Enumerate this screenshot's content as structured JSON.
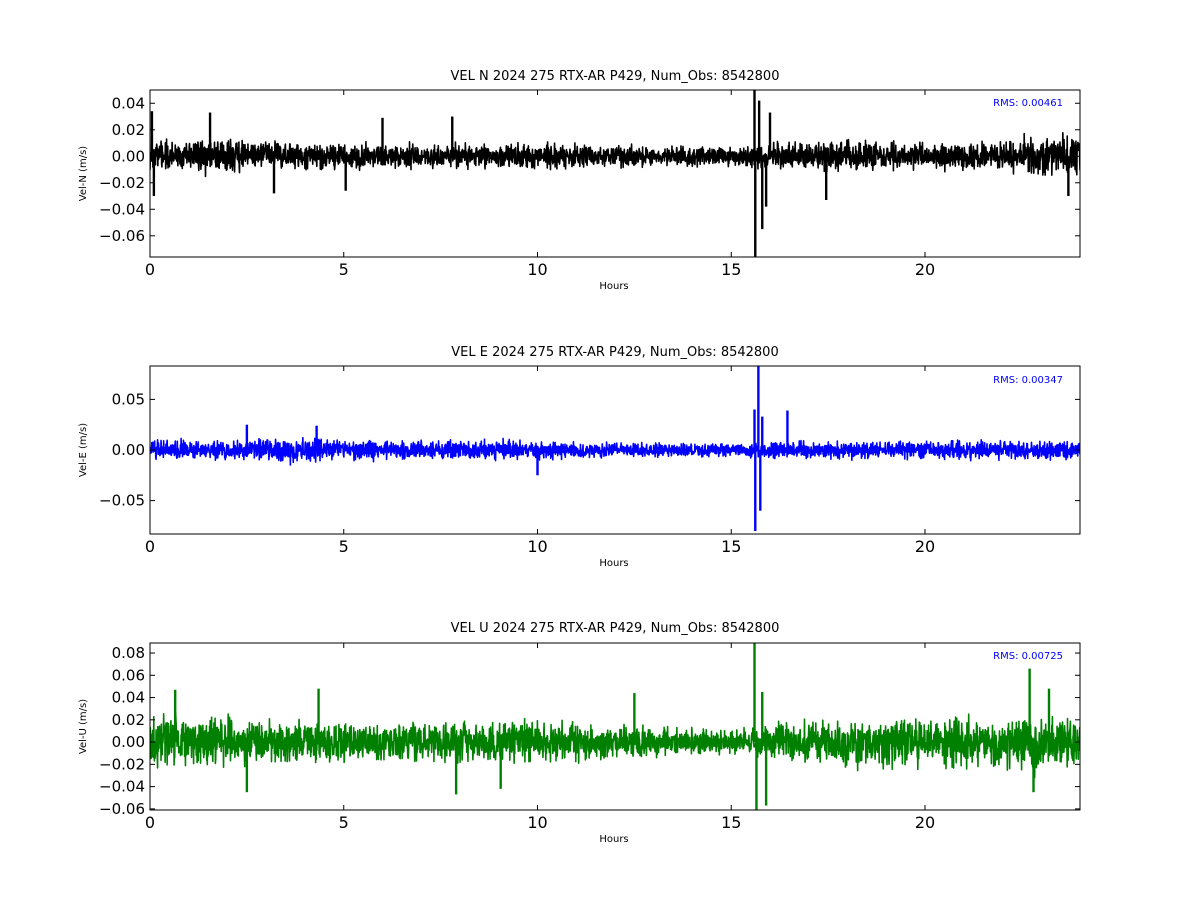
{
  "chart_data": [
    {
      "type": "line",
      "title": "VEL N 2024 275 RTX-AR  P429, Num_Obs: 8542800",
      "xlabel": "Hours",
      "ylabel": "Vel-N (m/s)",
      "xlim": [
        0,
        24
      ],
      "ylim": [
        -0.076,
        0.05
      ],
      "xticks": [
        0,
        5,
        10,
        15,
        20
      ],
      "xtick_labels": [
        "0",
        "5",
        "10",
        "15",
        "20"
      ],
      "yticks": [
        -0.06,
        -0.04,
        -0.02,
        0.0,
        0.02,
        0.04
      ],
      "ytick_labels": [
        "−0.06",
        "−0.04",
        "−0.02",
        "0.00",
        "0.02",
        "0.04"
      ],
      "color": "#000000",
      "annotation": "RMS:  0.00461",
      "grid": false,
      "series": [
        {
          "noise_envelope": {
            "x": [
              0,
              2,
              4,
              6,
              8,
              10,
              12,
              14,
              15,
              16,
              18,
              20,
              22,
              24
            ],
            "amp": [
              0.017,
              0.018,
              0.013,
              0.013,
              0.012,
              0.013,
              0.011,
              0.01,
              0.01,
              0.013,
              0.016,
              0.013,
              0.016,
              0.022
            ]
          },
          "spikes": [
            {
              "x": 0.05,
              "y": 0.034
            },
            {
              "x": 0.1,
              "y": -0.03
            },
            {
              "x": 1.55,
              "y": 0.033
            },
            {
              "x": 3.2,
              "y": -0.028
            },
            {
              "x": 5.05,
              "y": -0.026
            },
            {
              "x": 6.0,
              "y": 0.029
            },
            {
              "x": 7.8,
              "y": 0.03
            },
            {
              "x": 15.6,
              "y": 0.05
            },
            {
              "x": 15.62,
              "y": -0.076
            },
            {
              "x": 15.72,
              "y": 0.042
            },
            {
              "x": 15.8,
              "y": -0.055
            },
            {
              "x": 15.9,
              "y": -0.038
            },
            {
              "x": 16.0,
              "y": 0.033
            },
            {
              "x": 17.45,
              "y": -0.033
            },
            {
              "x": 23.7,
              "y": -0.03
            }
          ]
        }
      ]
    },
    {
      "type": "line",
      "title": "VEL E 2024 275 RTX-AR  P429, Num_Obs: 8542800",
      "xlabel": "Hours",
      "ylabel": "Vel-E (m/s)",
      "xlim": [
        0,
        24
      ],
      "ylim": [
        -0.083,
        0.083
      ],
      "xticks": [
        0,
        5,
        10,
        15,
        20
      ],
      "xtick_labels": [
        "0",
        "5",
        "10",
        "15",
        "20"
      ],
      "yticks": [
        -0.05,
        0.0,
        0.05
      ],
      "ytick_labels": [
        "−0.05",
        "0.00",
        "0.05"
      ],
      "color": "#0000ff",
      "annotation": "RMS:  0.00347",
      "grid": false,
      "series": [
        {
          "noise_envelope": {
            "x": [
              0,
              2,
              4,
              6,
              8,
              10,
              12,
              14,
              15,
              16,
              18,
              20,
              22,
              24
            ],
            "amp": [
              0.013,
              0.013,
              0.017,
              0.012,
              0.012,
              0.013,
              0.011,
              0.009,
              0.009,
              0.011,
              0.011,
              0.012,
              0.012,
              0.013
            ]
          },
          "spikes": [
            {
              "x": 2.5,
              "y": 0.025
            },
            {
              "x": 4.3,
              "y": 0.024
            },
            {
              "x": 10.0,
              "y": -0.025
            },
            {
              "x": 15.6,
              "y": 0.04
            },
            {
              "x": 15.62,
              "y": -0.08
            },
            {
              "x": 15.7,
              "y": 0.083
            },
            {
              "x": 15.75,
              "y": -0.06
            },
            {
              "x": 15.8,
              "y": 0.033
            },
            {
              "x": 16.45,
              "y": 0.039
            }
          ]
        }
      ]
    },
    {
      "type": "line",
      "title": "VEL U 2024 275 RTX-AR  P429, Num_Obs: 8542800",
      "xlabel": "Hours",
      "ylabel": "Vel-U (m/s)",
      "xlim": [
        0,
        24
      ],
      "ylim": [
        -0.061,
        0.089
      ],
      "xticks": [
        0,
        5,
        10,
        15,
        20
      ],
      "xtick_labels": [
        "0",
        "5",
        "10",
        "15",
        "20"
      ],
      "yticks": [
        -0.06,
        -0.04,
        -0.02,
        0.0,
        0.02,
        0.04,
        0.06,
        0.08
      ],
      "ytick_labels": [
        "−0.06",
        "−0.04",
        "−0.02",
        "0.00",
        "0.02",
        "0.04",
        "0.06",
        "0.08"
      ],
      "color": "#008000",
      "annotation": "RMS:  0.00725",
      "grid": false,
      "series": [
        {
          "noise_envelope": {
            "x": [
              0,
              1,
              2,
              4,
              6,
              8,
              10,
              12,
              14,
              15,
              16,
              18,
              19,
              20,
              22,
              23,
              24
            ],
            "amp": [
              0.028,
              0.034,
              0.028,
              0.022,
              0.022,
              0.023,
              0.025,
              0.02,
              0.015,
              0.015,
              0.022,
              0.026,
              0.036,
              0.03,
              0.03,
              0.036,
              0.025
            ]
          },
          "spikes": [
            {
              "x": 0.65,
              "y": 0.047
            },
            {
              "x": 2.5,
              "y": -0.045
            },
            {
              "x": 4.35,
              "y": 0.048
            },
            {
              "x": 7.9,
              "y": -0.047
            },
            {
              "x": 9.05,
              "y": -0.042
            },
            {
              "x": 12.5,
              "y": 0.044
            },
            {
              "x": 15.6,
              "y": 0.089
            },
            {
              "x": 15.65,
              "y": -0.061
            },
            {
              "x": 15.8,
              "y": 0.045
            },
            {
              "x": 15.9,
              "y": -0.057
            },
            {
              "x": 22.7,
              "y": 0.066
            },
            {
              "x": 23.2,
              "y": 0.048
            },
            {
              "x": 22.8,
              "y": -0.045
            }
          ]
        }
      ]
    }
  ]
}
